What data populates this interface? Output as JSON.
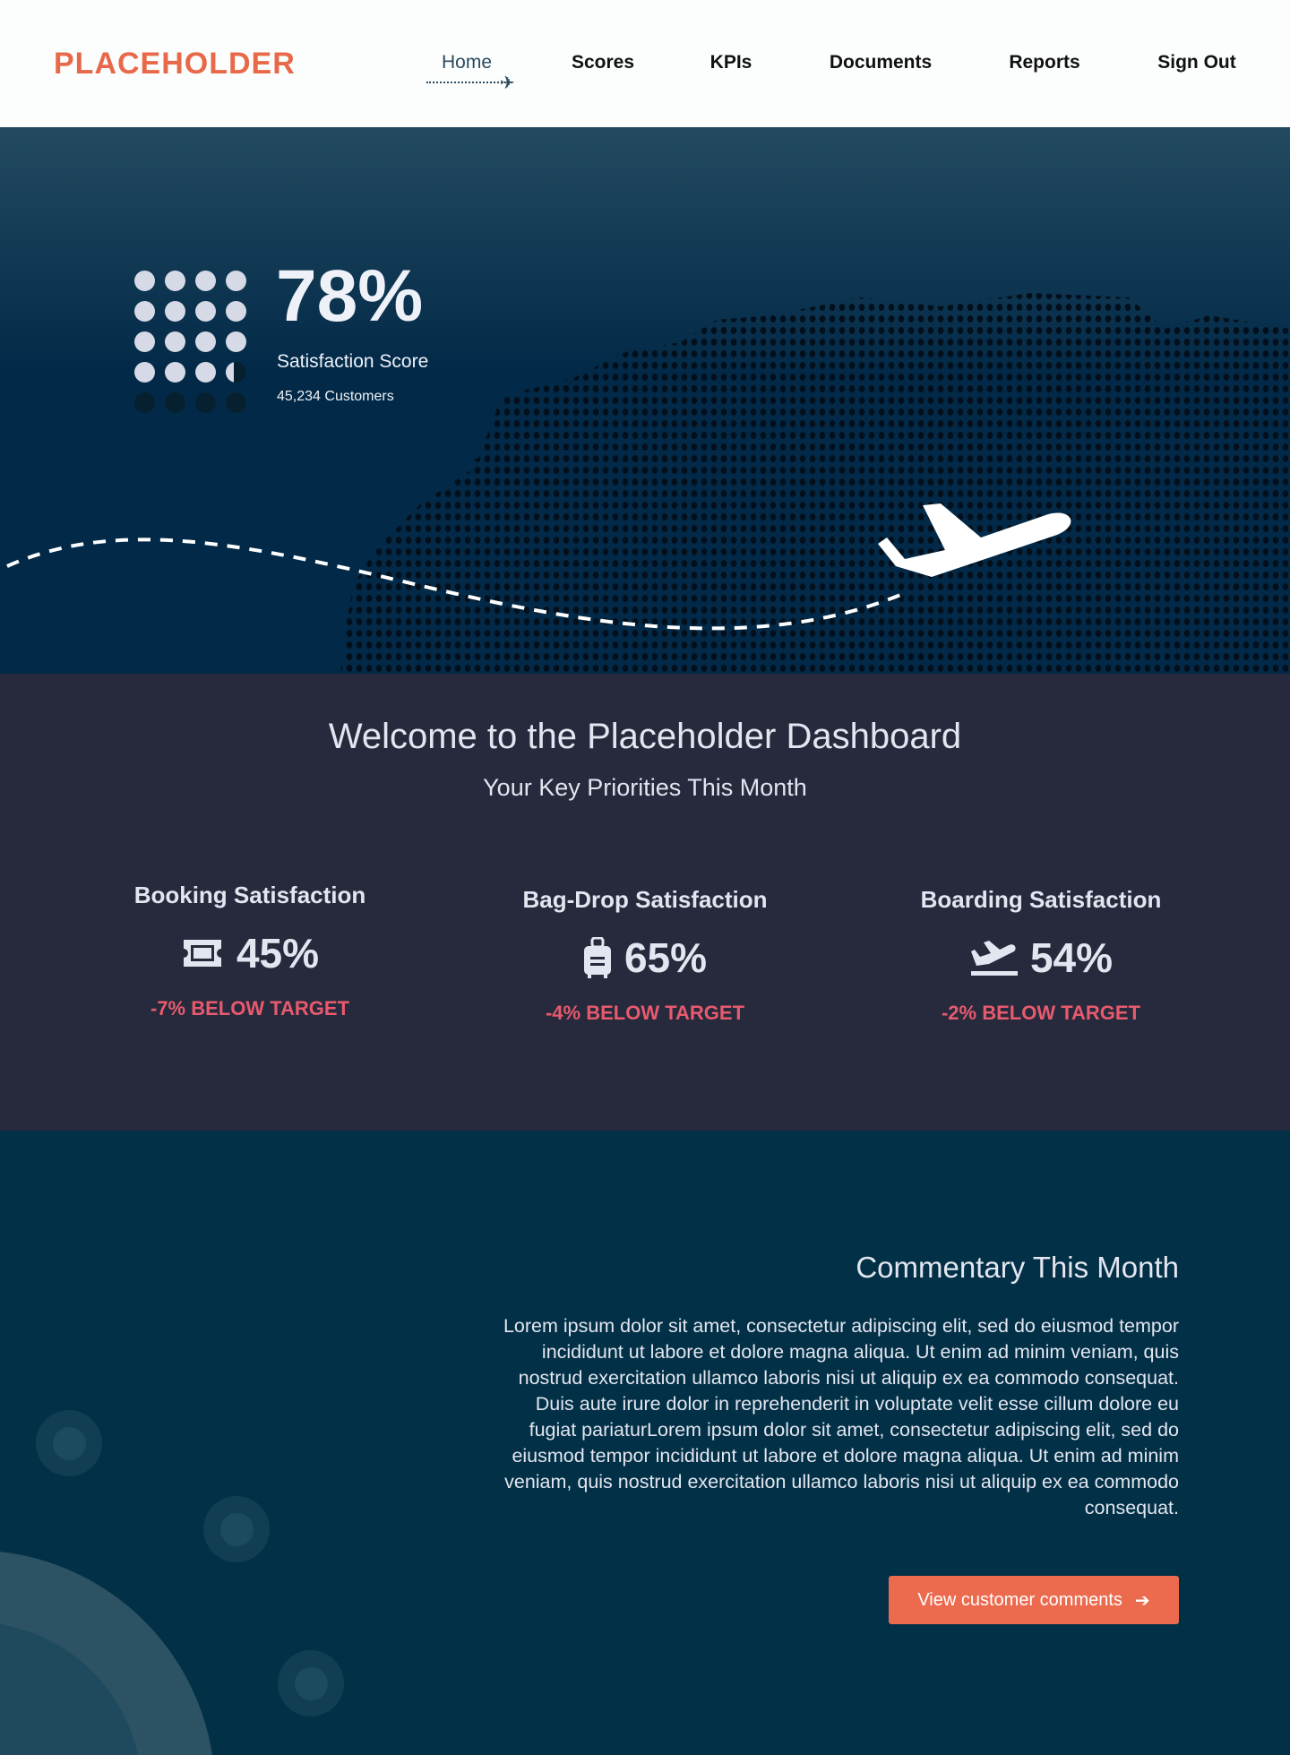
{
  "header": {
    "logo": "PLACEHOLDER",
    "nav": [
      {
        "label": "Home",
        "active": true
      },
      {
        "label": "Scores"
      },
      {
        "label": "KPIs"
      },
      {
        "label": "Documents"
      },
      {
        "label": "Reports"
      },
      {
        "label": "Sign Out"
      }
    ]
  },
  "hero": {
    "score": "78%",
    "score_value": 78,
    "label": "Satisfaction Score",
    "customers": "45,234 Customers"
  },
  "welcome": {
    "title": "Welcome to the Placeholder Dashboard",
    "subtitle": "Your Key Priorities This Month",
    "kpis": [
      {
        "title": "Booking Satisfaction",
        "value": "45%",
        "icon": "ticket-icon",
        "delta": "-7% BELOW TARGET"
      },
      {
        "title": "Bag-Drop Satisfaction",
        "value": "65%",
        "icon": "luggage-icon",
        "delta": "-4% BELOW TARGET"
      },
      {
        "title": "Boarding Satisfaction",
        "value": "54%",
        "icon": "plane-departure-icon",
        "delta": "-2% BELOW TARGET"
      }
    ]
  },
  "commentary": {
    "title": "Commentary This Month",
    "text": "Lorem ipsum dolor sit amet, consectetur adipiscing elit, sed do eiusmod tempor incididunt ut labore et dolore magna aliqua. Ut enim ad minim veniam, quis nostrud exercitation ullamco laboris nisi ut aliquip ex ea commodo consequat. Duis aute irure dolor in reprehenderit in voluptate velit esse cillum dolore eu fugiat pariaturLorem ipsum dolor sit amet, consectetur adipiscing elit, sed do eiusmod tempor incididunt ut labore et dolore magna aliqua. Ut enim ad minim veniam, quis nostrud exercitation ullamco laboris nisi ut aliquip ex ea commodo consequat.",
    "button": "View customer comments"
  },
  "colors": {
    "brand": "#e8694a",
    "header_bg": "#fcfefe",
    "hero_bg": "#022a48",
    "welcome_bg": "#262a3c",
    "bottom_bg": "#023046",
    "alert": "#e85a6e",
    "button": "#ec6b4e"
  }
}
